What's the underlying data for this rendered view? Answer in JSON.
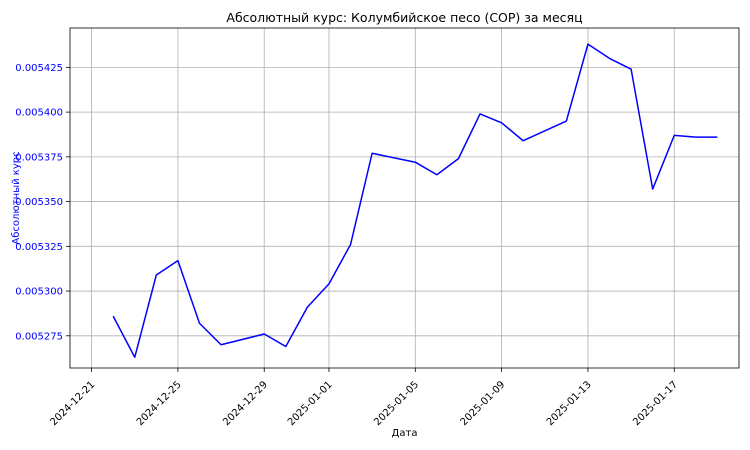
{
  "colors": {
    "line": "#0000ff",
    "y_axis_text": "#0000ff",
    "x_axis_text": "#000000",
    "grid": "#b0b0b0"
  },
  "chart_data": {
    "type": "line",
    "title": "Абсолютный курс: Колумбийское песо (COP) за месяц",
    "xlabel": "Дата",
    "ylabel": "Абсолютный курс",
    "grid": true,
    "x_axis_kind": "date",
    "xlim": [
      "2024-12-20",
      "2025-01-20"
    ],
    "ylim": [
      0.005257,
      0.005447
    ],
    "x_ticks": [
      "2024-12-21",
      "2024-12-25",
      "2024-12-29",
      "2025-01-01",
      "2025-01-05",
      "2025-01-09",
      "2025-01-13",
      "2025-01-17"
    ],
    "y_ticks": [
      0.005275,
      0.0053,
      0.005325,
      0.00535,
      0.005375,
      0.0054,
      0.005425
    ],
    "y_tick_labels": [
      "0.005275",
      "0.005300",
      "0.005325",
      "0.005350",
      "0.005375",
      "0.005400",
      "0.005425"
    ],
    "series": [
      {
        "x": [
          "2024-12-22",
          "2024-12-23",
          "2024-12-24",
          "2024-12-25",
          "2024-12-26",
          "2024-12-27",
          "2024-12-29",
          "2024-12-30",
          "2024-12-31",
          "2025-01-01",
          "2025-01-02",
          "2025-01-03",
          "2025-01-05",
          "2025-01-06",
          "2025-01-07",
          "2025-01-08",
          "2025-01-09",
          "2025-01-10",
          "2025-01-12",
          "2025-01-13",
          "2025-01-14",
          "2025-01-15",
          "2025-01-16",
          "2025-01-17",
          "2025-01-18",
          "2025-01-19"
        ],
        "y": [
          0.005286,
          0.005263,
          0.005309,
          0.005317,
          0.005282,
          0.00527,
          0.005276,
          0.005269,
          0.005291,
          0.005304,
          0.005326,
          0.005377,
          0.005372,
          0.005365,
          0.005374,
          0.005399,
          0.005394,
          0.005384,
          0.005395,
          0.005438,
          0.00543,
          0.005424,
          0.005357,
          0.005387,
          0.005386,
          0.005386
        ]
      }
    ]
  }
}
